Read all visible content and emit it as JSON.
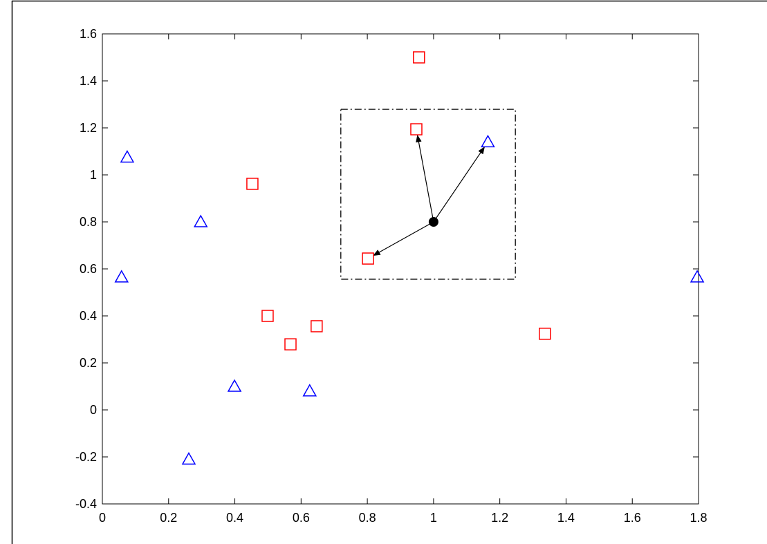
{
  "chart_data": {
    "type": "scatter",
    "xlim": [
      0,
      1.8
    ],
    "ylim": [
      -0.4,
      1.6
    ],
    "xticks": [
      0,
      0.2,
      0.4,
      0.6,
      0.8,
      1,
      1.2,
      1.4,
      1.6,
      1.8
    ],
    "yticks": [
      -0.4,
      -0.2,
      0,
      0.2,
      0.4,
      0.6,
      0.8,
      1,
      1.2,
      1.4,
      1.6
    ],
    "series": [
      {
        "marker": "square",
        "color": "#ff0000",
        "x": [
          0.956,
          0.948,
          0.453,
          0.802,
          0.499,
          0.568,
          0.647,
          1.336
        ],
        "values": [
          1.5,
          1.194,
          0.962,
          0.644,
          0.4,
          0.279,
          0.356,
          0.324
        ]
      },
      {
        "marker": "triangle",
        "color": "#0000ff",
        "x": [
          0.075,
          0.297,
          0.058,
          0.399,
          0.626,
          0.261,
          1.164,
          1.796
        ],
        "values": [
          1.075,
          0.8,
          0.565,
          0.1,
          0.08,
          -0.21,
          1.14,
          0.565
        ]
      },
      {
        "marker": "dot",
        "color": "#000000",
        "x": [
          1.0
        ],
        "values": [
          0.8
        ]
      }
    ],
    "box": {
      "x": [
        0.72,
        1.247
      ],
      "y": [
        0.556,
        1.279
      ]
    },
    "arrows": [
      {
        "x": [
          1.0,
          0.948
        ],
        "y": [
          0.8,
          1.194
        ]
      },
      {
        "x": [
          1.0,
          1.164
        ],
        "y": [
          0.8,
          1.14
        ]
      },
      {
        "x": [
          1.0,
          0.802
        ],
        "y": [
          0.8,
          0.644
        ]
      }
    ]
  }
}
